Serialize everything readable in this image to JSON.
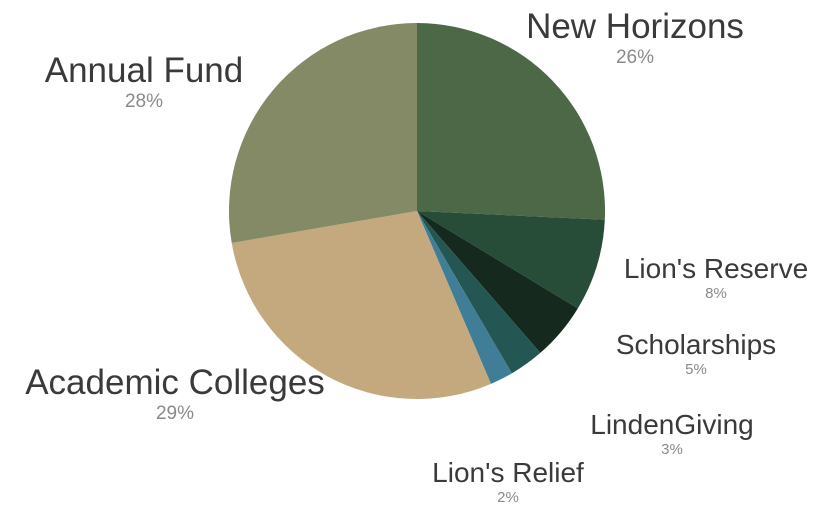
{
  "chart_data": {
    "type": "pie",
    "title": "",
    "start_angle_deg": 0,
    "direction": "clockwise",
    "slices": [
      {
        "label": "New Horizons",
        "value": 26,
        "pct_text": "26%",
        "color": "#4d6847"
      },
      {
        "label": "Lion's Reserve",
        "value": 8,
        "pct_text": "8%",
        "color": "#274d39"
      },
      {
        "label": "Scholarships",
        "value": 5,
        "pct_text": "5%",
        "color": "#15291f"
      },
      {
        "label": "LindenGiving",
        "value": 3,
        "pct_text": "3%",
        "color": "#245753"
      },
      {
        "label": "Lion's Relief",
        "value": 2,
        "pct_text": "2%",
        "color": "#3f7e96"
      },
      {
        "label": "Academic Colleges",
        "value": 29,
        "pct_text": "29%",
        "color": "#c5a97e"
      },
      {
        "label": "Annual Fund",
        "value": 28,
        "pct_text": "28%",
        "color": "#848a66"
      }
    ]
  }
}
